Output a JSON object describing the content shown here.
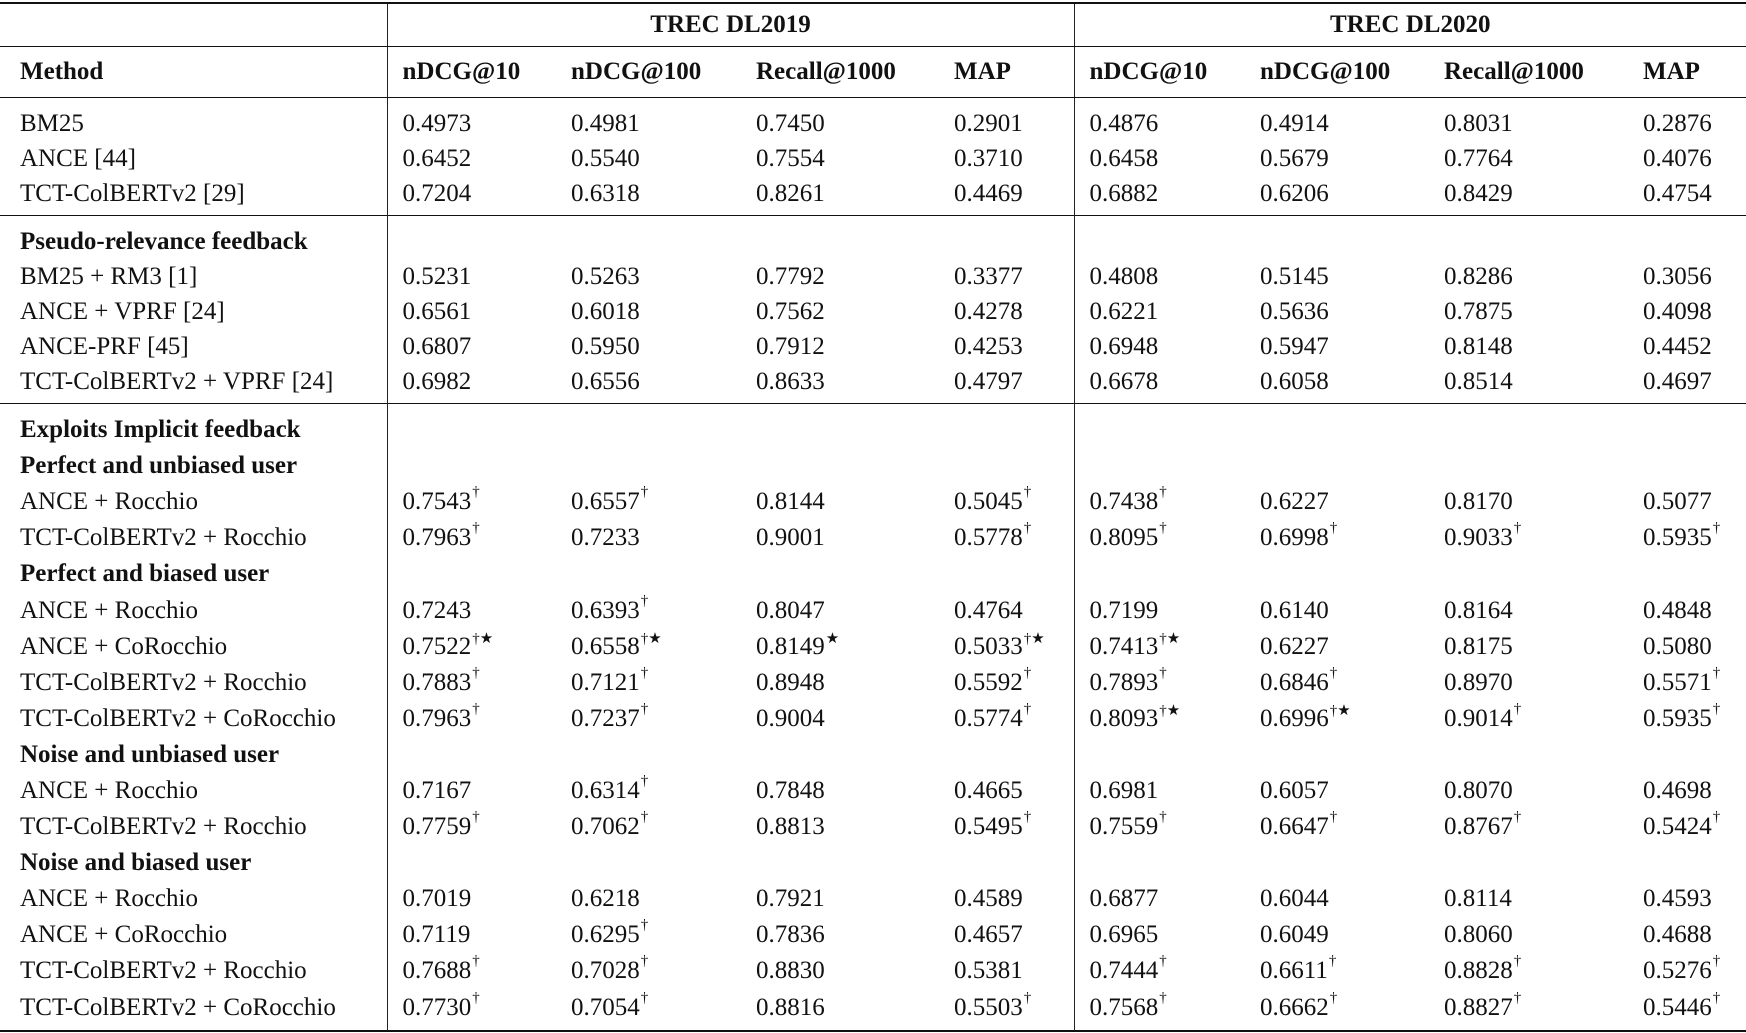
{
  "header": {
    "method": "Method",
    "datasets": [
      "TREC DL2019",
      "TREC DL2020"
    ],
    "metrics": [
      "nDCG@10",
      "nDCG@100",
      "Recall@1000",
      "MAP",
      "nDCG@10",
      "nDCG@100",
      "Recall@1000",
      "MAP"
    ]
  },
  "groups": [
    {
      "rows": [
        {
          "method": "BM25",
          "values": [
            [
              "0.4973",
              ""
            ],
            [
              "0.4981",
              ""
            ],
            [
              "0.7450",
              ""
            ],
            [
              "0.2901",
              ""
            ],
            [
              "0.4876",
              ""
            ],
            [
              "0.4914",
              ""
            ],
            [
              "0.8031",
              ""
            ],
            [
              "0.2876",
              ""
            ]
          ]
        },
        {
          "method": "ANCE [44]",
          "values": [
            [
              "0.6452",
              ""
            ],
            [
              "0.5540",
              ""
            ],
            [
              "0.7554",
              ""
            ],
            [
              "0.3710",
              ""
            ],
            [
              "0.6458",
              ""
            ],
            [
              "0.5679",
              ""
            ],
            [
              "0.7764",
              ""
            ],
            [
              "0.4076",
              ""
            ]
          ]
        },
        {
          "method": "TCT-ColBERTv2 [29]",
          "values": [
            [
              "0.7204",
              ""
            ],
            [
              "0.6318",
              ""
            ],
            [
              "0.8261",
              ""
            ],
            [
              "0.4469",
              ""
            ],
            [
              "0.6882",
              ""
            ],
            [
              "0.6206",
              ""
            ],
            [
              "0.8429",
              ""
            ],
            [
              "0.4754",
              ""
            ]
          ]
        }
      ]
    },
    {
      "rows": [
        {
          "heading": "Pseudo-relevance feedback"
        },
        {
          "method": "BM25 + RM3 [1]",
          "values": [
            [
              "0.5231",
              ""
            ],
            [
              "0.5263",
              ""
            ],
            [
              "0.7792",
              ""
            ],
            [
              "0.3377",
              ""
            ],
            [
              "0.4808",
              ""
            ],
            [
              "0.5145",
              ""
            ],
            [
              "0.8286",
              ""
            ],
            [
              "0.3056",
              ""
            ]
          ]
        },
        {
          "method": "ANCE + VPRF [24]",
          "values": [
            [
              "0.6561",
              ""
            ],
            [
              "0.6018",
              ""
            ],
            [
              "0.7562",
              ""
            ],
            [
              "0.4278",
              ""
            ],
            [
              "0.6221",
              ""
            ],
            [
              "0.5636",
              ""
            ],
            [
              "0.7875",
              ""
            ],
            [
              "0.4098",
              ""
            ]
          ]
        },
        {
          "method": "ANCE-PRF [45]",
          "values": [
            [
              "0.6807",
              ""
            ],
            [
              "0.5950",
              ""
            ],
            [
              "0.7912",
              ""
            ],
            [
              "0.4253",
              ""
            ],
            [
              "0.6948",
              ""
            ],
            [
              "0.5947",
              ""
            ],
            [
              "0.8148",
              ""
            ],
            [
              "0.4452",
              ""
            ]
          ]
        },
        {
          "method": "TCT-ColBERTv2 + VPRF [24]",
          "values": [
            [
              "0.6982",
              ""
            ],
            [
              "0.6556",
              ""
            ],
            [
              "0.8633",
              ""
            ],
            [
              "0.4797",
              ""
            ],
            [
              "0.6678",
              ""
            ],
            [
              "0.6058",
              ""
            ],
            [
              "0.8514",
              ""
            ],
            [
              "0.4697",
              ""
            ]
          ]
        }
      ]
    },
    {
      "rows": [
        {
          "heading": "Exploits Implicit feedback"
        },
        {
          "heading": "Perfect and unbiased user"
        },
        {
          "method": "ANCE + Rocchio",
          "values": [
            [
              "0.7543",
              "†"
            ],
            [
              "0.6557",
              "†"
            ],
            [
              "0.8144",
              ""
            ],
            [
              "0.5045",
              "†"
            ],
            [
              "0.7438",
              "†"
            ],
            [
              "0.6227",
              ""
            ],
            [
              "0.8170",
              ""
            ],
            [
              "0.5077",
              ""
            ]
          ]
        },
        {
          "method": "TCT-ColBERTv2 + Rocchio",
          "values": [
            [
              "0.7963",
              "†"
            ],
            [
              "0.7233",
              ""
            ],
            [
              "0.9001",
              ""
            ],
            [
              "0.5778",
              "†"
            ],
            [
              "0.8095",
              "†"
            ],
            [
              "0.6998",
              "†"
            ],
            [
              "0.9033",
              "†"
            ],
            [
              "0.5935",
              "†"
            ]
          ]
        },
        {
          "heading": "Perfect and biased user"
        },
        {
          "method": "ANCE + Rocchio",
          "values": [
            [
              "0.7243",
              ""
            ],
            [
              "0.6393",
              "†"
            ],
            [
              "0.8047",
              ""
            ],
            [
              "0.4764",
              ""
            ],
            [
              "0.7199",
              ""
            ],
            [
              "0.6140",
              ""
            ],
            [
              "0.8164",
              ""
            ],
            [
              "0.4848",
              ""
            ]
          ]
        },
        {
          "method": "ANCE + CoRocchio",
          "values": [
            [
              "0.7522",
              "†★"
            ],
            [
              "0.6558",
              "†★"
            ],
            [
              "0.8149",
              "★"
            ],
            [
              "0.5033",
              "†★"
            ],
            [
              "0.7413",
              "†★"
            ],
            [
              "0.6227",
              ""
            ],
            [
              "0.8175",
              ""
            ],
            [
              "0.5080",
              ""
            ]
          ]
        },
        {
          "method": "TCT-ColBERTv2 + Rocchio",
          "values": [
            [
              "0.7883",
              "†"
            ],
            [
              "0.7121",
              "†"
            ],
            [
              "0.8948",
              ""
            ],
            [
              "0.5592",
              "†"
            ],
            [
              "0.7893",
              "†"
            ],
            [
              "0.6846",
              "†"
            ],
            [
              "0.8970",
              ""
            ],
            [
              "0.5571",
              "†"
            ]
          ]
        },
        {
          "method": "TCT-ColBERTv2 + CoRocchio",
          "values": [
            [
              "0.7963",
              "†"
            ],
            [
              "0.7237",
              "†"
            ],
            [
              "0.9004",
              ""
            ],
            [
              "0.5774",
              "†"
            ],
            [
              "0.8093",
              "†★"
            ],
            [
              "0.6996",
              "†★"
            ],
            [
              "0.9014",
              "†"
            ],
            [
              "0.5935",
              "†"
            ]
          ]
        },
        {
          "heading": "Noise and unbiased user"
        },
        {
          "method": "ANCE + Rocchio",
          "values": [
            [
              "0.7167",
              ""
            ],
            [
              "0.6314",
              "†"
            ],
            [
              "0.7848",
              ""
            ],
            [
              "0.4665",
              ""
            ],
            [
              "0.6981",
              ""
            ],
            [
              "0.6057",
              ""
            ],
            [
              "0.8070",
              ""
            ],
            [
              "0.4698",
              ""
            ]
          ]
        },
        {
          "method": "TCT-ColBERTv2 + Rocchio",
          "values": [
            [
              "0.7759",
              "†"
            ],
            [
              "0.7062",
              "†"
            ],
            [
              "0.8813",
              ""
            ],
            [
              "0.5495",
              "†"
            ],
            [
              "0.7559",
              "†"
            ],
            [
              "0.6647",
              "†"
            ],
            [
              "0.8767",
              "†"
            ],
            [
              "0.5424",
              "†"
            ]
          ]
        },
        {
          "heading": "Noise and biased user"
        },
        {
          "method": "ANCE + Rocchio",
          "values": [
            [
              "0.7019",
              ""
            ],
            [
              "0.6218",
              ""
            ],
            [
              "0.7921",
              ""
            ],
            [
              "0.4589",
              ""
            ],
            [
              "0.6877",
              ""
            ],
            [
              "0.6044",
              ""
            ],
            [
              "0.8114",
              ""
            ],
            [
              "0.4593",
              ""
            ]
          ]
        },
        {
          "method": "ANCE + CoRocchio",
          "values": [
            [
              "0.7119",
              ""
            ],
            [
              "0.6295",
              "†"
            ],
            [
              "0.7836",
              ""
            ],
            [
              "0.4657",
              ""
            ],
            [
              "0.6965",
              ""
            ],
            [
              "0.6049",
              ""
            ],
            [
              "0.8060",
              ""
            ],
            [
              "0.4688",
              ""
            ]
          ]
        },
        {
          "method": "TCT-ColBERTv2 + Rocchio",
          "values": [
            [
              "0.7688",
              "†"
            ],
            [
              "0.7028",
              "†"
            ],
            [
              "0.8830",
              ""
            ],
            [
              "0.5381",
              ""
            ],
            [
              "0.7444",
              "†"
            ],
            [
              "0.6611",
              "†"
            ],
            [
              "0.8828",
              "†"
            ],
            [
              "0.5276",
              "†"
            ]
          ]
        },
        {
          "method": "TCT-ColBERTv2 + CoRocchio",
          "values": [
            [
              "0.7730",
              "†"
            ],
            [
              "0.7054",
              "†"
            ],
            [
              "0.8816",
              ""
            ],
            [
              "0.5503",
              "†"
            ],
            [
              "0.7568",
              "†"
            ],
            [
              "0.6662",
              "†"
            ],
            [
              "0.8827",
              "†"
            ],
            [
              "0.5446",
              "†"
            ]
          ]
        }
      ]
    }
  ]
}
